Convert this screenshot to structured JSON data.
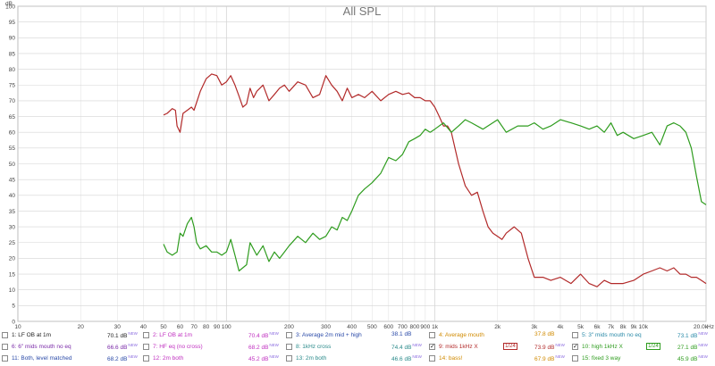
{
  "chart_data": {
    "type": "line",
    "title": "All SPL",
    "y_unit": "dB",
    "x_unit": "Hz",
    "x_scale": "log",
    "xlim": [
      10,
      20000
    ],
    "ylim": [
      0,
      100
    ],
    "grid": true,
    "x_tick_labels": [
      "10",
      "20",
      "30",
      "40",
      "50",
      "60",
      "70",
      "80",
      "90",
      "100",
      "200",
      "300",
      "400",
      "500",
      "600",
      "700",
      "800",
      "900",
      "1k",
      "2k",
      "3k",
      "4k",
      "5k",
      "6k",
      "7k",
      "8k",
      "9k",
      "10k",
      "20.0k"
    ],
    "x_tick_values": [
      10,
      20,
      30,
      40,
      50,
      60,
      70,
      80,
      90,
      100,
      200,
      300,
      400,
      500,
      600,
      700,
      800,
      900,
      1000,
      2000,
      3000,
      4000,
      5000,
      6000,
      7000,
      8000,
      9000,
      10000,
      20000
    ],
    "y_tick_labels": [
      "0",
      "5",
      "10",
      "15",
      "20",
      "25",
      "30",
      "35",
      "40",
      "45",
      "50",
      "55",
      "60",
      "65",
      "70",
      "75",
      "80",
      "85",
      "90",
      "95",
      "100"
    ],
    "series": [
      {
        "name": "9: mids 1kHz X",
        "color": "#b22a2a",
        "x": [
          50,
          52,
          55,
          57,
          58,
          60,
          62,
          65,
          68,
          70,
          75,
          80,
          85,
          90,
          95,
          100,
          105,
          110,
          115,
          120,
          125,
          130,
          135,
          140,
          150,
          160,
          170,
          180,
          190,
          200,
          220,
          240,
          260,
          280,
          300,
          320,
          340,
          360,
          380,
          400,
          430,
          460,
          500,
          550,
          600,
          650,
          700,
          750,
          800,
          850,
          900,
          950,
          1000,
          1050,
          1100,
          1150,
          1200,
          1300,
          1400,
          1500,
          1600,
          1700,
          1800,
          1900,
          2000,
          2100,
          2200,
          2400,
          2600,
          2800,
          3000,
          3300,
          3600,
          4000,
          4500,
          5000,
          5500,
          6000,
          6500,
          7000,
          8000,
          9000,
          10000,
          11000,
          12000,
          13000,
          14000,
          15000,
          16000,
          17000,
          18000,
          19000,
          20000
        ],
        "y": [
          65.5,
          66,
          67.5,
          67,
          62,
          60,
          66,
          67,
          68,
          67,
          73,
          77,
          78.5,
          78,
          75,
          76,
          78,
          75,
          71.5,
          68,
          69,
          74,
          71,
          73,
          75,
          70,
          72,
          74,
          75,
          73,
          76,
          75,
          71,
          72,
          78,
          75,
          73,
          70,
          74,
          71,
          72,
          71,
          73,
          70,
          72,
          73,
          72,
          72.5,
          71,
          71,
          70,
          70,
          68,
          65,
          62,
          62,
          60,
          50,
          43,
          40,
          41,
          35,
          30,
          28,
          27,
          26,
          28,
          30,
          28,
          20,
          14,
          14,
          13,
          14,
          12,
          15,
          12,
          11,
          13,
          12,
          12,
          13,
          15,
          16,
          17,
          16,
          17,
          15,
          15,
          14,
          14,
          13,
          12
        ]
      },
      {
        "name": "10: high 1kHz X",
        "color": "#2e9c1e",
        "x": [
          50,
          52,
          55,
          58,
          60,
          62,
          65,
          68,
          70,
          72,
          75,
          80,
          85,
          90,
          95,
          100,
          105,
          110,
          115,
          120,
          125,
          130,
          140,
          150,
          160,
          170,
          180,
          190,
          200,
          220,
          240,
          260,
          280,
          300,
          320,
          340,
          360,
          380,
          400,
          430,
          460,
          500,
          550,
          600,
          650,
          700,
          750,
          800,
          850,
          900,
          950,
          1000,
          1100,
          1200,
          1300,
          1400,
          1500,
          1700,
          2000,
          2200,
          2500,
          2800,
          3000,
          3300,
          3600,
          4000,
          4500,
          5000,
          5500,
          6000,
          6500,
          7000,
          7500,
          8000,
          9000,
          10000,
          11000,
          12000,
          13000,
          14000,
          15000,
          16000,
          17000,
          18000,
          19000,
          20000
        ],
        "y": [
          24.5,
          22,
          21,
          22,
          28,
          27,
          31,
          33,
          30,
          25,
          23,
          24,
          22,
          22,
          21,
          22,
          26,
          21,
          16,
          17,
          18,
          25,
          21,
          24,
          19,
          22,
          20,
          22,
          24,
          27,
          25,
          28,
          26,
          27,
          30,
          29,
          33,
          32,
          35,
          40,
          42,
          44,
          47,
          52,
          51,
          53,
          57,
          58,
          59,
          61,
          60,
          61,
          63,
          60,
          62,
          64,
          63,
          61,
          64,
          60,
          62,
          62,
          63,
          61,
          62,
          64,
          63,
          62,
          61,
          62,
          60,
          63,
          59,
          60,
          58,
          59,
          60,
          56,
          62,
          63,
          62,
          60,
          55,
          46,
          38,
          37
        ]
      }
    ],
    "legend": [
      {
        "label": "1: LF OB at 1m",
        "value": "70.1 dB",
        "new": "NEW",
        "color": "#222222",
        "checked": false
      },
      {
        "label": "2: LF OB at 1m",
        "value": "70.4 dB",
        "new": "NEW",
        "color": "#c030c0",
        "checked": false
      },
      {
        "label": "3: Average 2m mid + high",
        "value": "38.1 dB",
        "new": "",
        "color": "#2a4aa8",
        "checked": false
      },
      {
        "label": "4: Average mouth",
        "value": "37.8 dB",
        "new": "",
        "color": "#d08a00",
        "checked": false
      },
      {
        "label": "5: 3\" mids mouth no eq",
        "value": "73.1 dB",
        "new": "NEW",
        "color": "#2a8aa8",
        "checked": false
      },
      {
        "label": "6: 6\" mids mouth no eq",
        "value": "66.6 dB",
        "new": "NEW",
        "color": "#7a2aa8",
        "checked": false
      },
      {
        "label": "7: HF eq (no cross)",
        "value": "68.2 dB",
        "new": "NEW",
        "color": "#c030c0",
        "checked": false
      },
      {
        "label": "8: 1kHz cross",
        "value": "74.4 dB",
        "new": "NEW",
        "color": "#2a8a8a",
        "checked": false
      },
      {
        "label": "9: mids 1kHz X",
        "value": "73.9 dB",
        "new": "NEW",
        "color": "#b22a2a",
        "checked": true,
        "swatch": "1/24"
      },
      {
        "label": "10: high 1kHz X",
        "value": "27.1 dB",
        "new": "NEW",
        "color": "#2e9c1e",
        "checked": true,
        "swatch": "1/24"
      },
      {
        "label": "11: Both, level matched",
        "value": "68.2 dB",
        "new": "NEW",
        "color": "#2a4aa8",
        "checked": false
      },
      {
        "label": "12: 2m both",
        "value": "45.2 dB",
        "new": "NEW",
        "color": "#c030c0",
        "checked": false
      },
      {
        "label": "13: 2m both",
        "value": "46.6 dB",
        "new": "NEW",
        "color": "#2a8a8a",
        "checked": false
      },
      {
        "label": "14: bass!",
        "value": "67.9 dB",
        "new": "NEW",
        "color": "#d08a00",
        "checked": false
      },
      {
        "label": "15: fixed 3 way",
        "value": "45.9 dB",
        "new": "NEW",
        "color": "#2e9c1e",
        "checked": false
      }
    ]
  }
}
